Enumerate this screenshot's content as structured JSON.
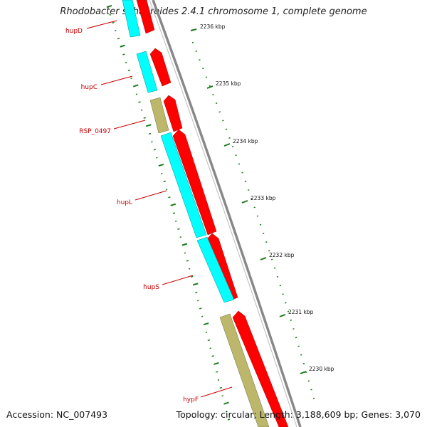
{
  "title": "Rhodobacter sphaeroides 2.4.1 chromosome 1, complete genome",
  "footer": {
    "accession": "Accession: NC_007493",
    "summary": "Topology: circular; Length: 3,188,609 bp; Genes: 3,070"
  },
  "colors": {
    "backbone": "#888888",
    "forward_cds": "#ff0000",
    "reverse_cds": "#00ffff",
    "other_feature": "#bdb76b",
    "gc_skew_marks": "#1a7a1a",
    "label": "#cc0000"
  },
  "scale_ticks": [
    "2236 kbp",
    "2235 kbp",
    "2234 kbp",
    "2233 kbp",
    "2232 kbp",
    "2231 kbp",
    "2230 kbp"
  ],
  "gene_labels": [
    "hupD",
    "hupC",
    "RSP_0497",
    "hupL",
    "hupS",
    "hypF"
  ]
}
